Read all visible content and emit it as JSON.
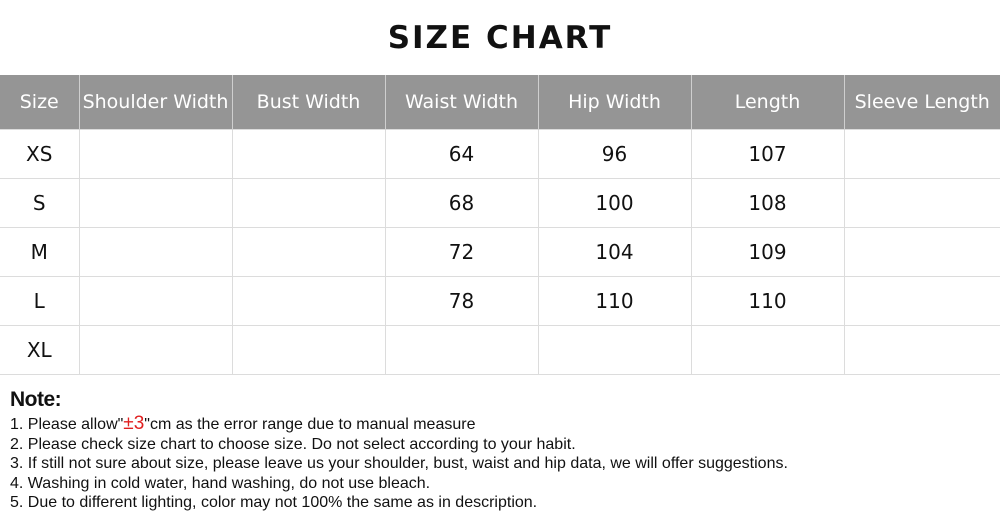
{
  "title": "SIZE CHART",
  "table": {
    "headers": [
      "Size",
      "Shoulder Width",
      "Bust Width",
      "Waist Width",
      "Hip Width",
      "Length",
      "Sleeve Length"
    ],
    "rows": [
      [
        "XS",
        "",
        "",
        "64",
        "96",
        "107",
        ""
      ],
      [
        "S",
        "",
        "",
        "68",
        "100",
        "108",
        ""
      ],
      [
        "M",
        "",
        "",
        "72",
        "104",
        "109",
        ""
      ],
      [
        "L",
        "",
        "",
        "78",
        "110",
        "110",
        ""
      ],
      [
        "XL",
        "",
        "",
        "",
        "",
        "",
        ""
      ]
    ]
  },
  "notes": {
    "title": "Note:",
    "item1_prefix": "1. Please allow\"",
    "item1_highlight": "±3",
    "item1_suffix": "\"cm as the error range due to manual measure",
    "items": [
      "2. Please check size chart to choose size. Do not select according to your habit.",
      "3. If still not sure about size, please leave us your shoulder, bust, waist and hip data, we will offer suggestions.",
      "4. Washing in cold water, hand washing, do not use bleach.",
      "5. Due to different lighting, color may not 100% the same as in description."
    ],
    "highlight_color": "#e02020"
  },
  "colors": {
    "header_bg": "#959595",
    "header_text": "#ffffff"
  }
}
